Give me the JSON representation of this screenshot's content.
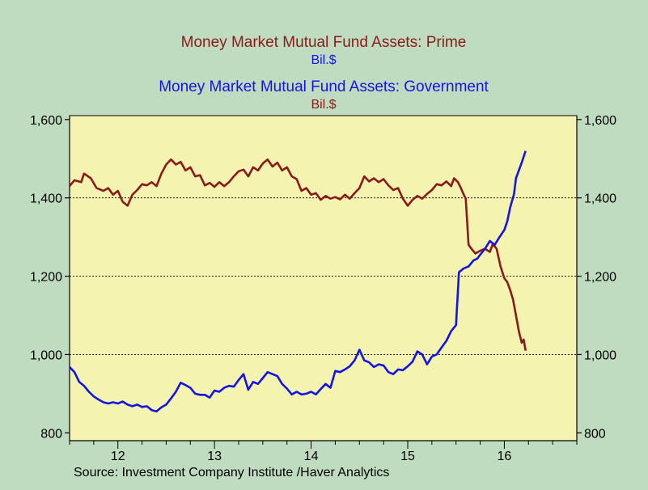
{
  "chart_data": {
    "type": "line",
    "titles": [
      {
        "text": "Money Market Mutual Fund Assets: Prime",
        "color": "#8b1a1a"
      },
      {
        "text": "Bil.$",
        "color": "#1414e6"
      },
      {
        "text": "Money Market Mutual Fund Assets: Government",
        "color": "#1414e6"
      },
      {
        "text": "Bil.$",
        "color": "#8b1a1a"
      }
    ],
    "source": "Source:  Investment Company Institute /Haver Analytics",
    "y_left": {
      "min": 780,
      "max": 1610,
      "ticks": [
        800,
        1000,
        1200,
        1400,
        1600
      ],
      "tick_labels": [
        "800",
        "1,000",
        "1,200",
        "1,400",
        "1,600"
      ]
    },
    "y_right": {
      "min": 780,
      "max": 1610,
      "ticks": [
        800,
        1000,
        1200,
        1400,
        1600
      ],
      "tick_labels": [
        "800",
        "1,000",
        "1,200",
        "1,400",
        "1,600"
      ]
    },
    "x_axis": {
      "min": 2011.5,
      "max": 2016.75,
      "year_ticks": [
        2012,
        2013,
        2014,
        2015,
        2016
      ],
      "year_labels": [
        "12",
        "13",
        "14",
        "15",
        "16"
      ]
    },
    "gridlines": [
      1000,
      1200,
      1400
    ],
    "plot_background": "#f5f3b0",
    "series": [
      {
        "name": "Money Market Mutual Fund Assets: Prime",
        "color": "#8b1a1a",
        "points": [
          [
            2011.5,
            1430
          ],
          [
            2011.55,
            1445
          ],
          [
            2011.62,
            1440
          ],
          [
            2011.65,
            1462
          ],
          [
            2011.72,
            1450
          ],
          [
            2011.78,
            1425
          ],
          [
            2011.85,
            1418
          ],
          [
            2011.9,
            1425
          ],
          [
            2011.95,
            1408
          ],
          [
            2012.0,
            1418
          ],
          [
            2012.05,
            1390
          ],
          [
            2012.1,
            1380
          ],
          [
            2012.15,
            1408
          ],
          [
            2012.2,
            1420
          ],
          [
            2012.25,
            1435
          ],
          [
            2012.3,
            1432
          ],
          [
            2012.35,
            1440
          ],
          [
            2012.4,
            1430
          ],
          [
            2012.45,
            1462
          ],
          [
            2012.5,
            1485
          ],
          [
            2012.55,
            1498
          ],
          [
            2012.6,
            1485
          ],
          [
            2012.65,
            1492
          ],
          [
            2012.7,
            1470
          ],
          [
            2012.75,
            1478
          ],
          [
            2012.8,
            1455
          ],
          [
            2012.85,
            1458
          ],
          [
            2012.9,
            1432
          ],
          [
            2012.95,
            1438
          ],
          [
            2013.0,
            1428
          ],
          [
            2013.05,
            1440
          ],
          [
            2013.1,
            1430
          ],
          [
            2013.15,
            1440
          ],
          [
            2013.2,
            1455
          ],
          [
            2013.25,
            1468
          ],
          [
            2013.3,
            1472
          ],
          [
            2013.35,
            1455
          ],
          [
            2013.4,
            1478
          ],
          [
            2013.45,
            1470
          ],
          [
            2013.5,
            1488
          ],
          [
            2013.55,
            1498
          ],
          [
            2013.6,
            1480
          ],
          [
            2013.65,
            1490
          ],
          [
            2013.7,
            1470
          ],
          [
            2013.75,
            1478
          ],
          [
            2013.8,
            1455
          ],
          [
            2013.85,
            1448
          ],
          [
            2013.9,
            1418
          ],
          [
            2013.95,
            1425
          ],
          [
            2014.0,
            1408
          ],
          [
            2014.05,
            1412
          ],
          [
            2014.1,
            1395
          ],
          [
            2014.15,
            1405
          ],
          [
            2014.2,
            1398
          ],
          [
            2014.25,
            1402
          ],
          [
            2014.3,
            1396
          ],
          [
            2014.35,
            1408
          ],
          [
            2014.4,
            1398
          ],
          [
            2014.45,
            1412
          ],
          [
            2014.5,
            1425
          ],
          [
            2014.55,
            1455
          ],
          [
            2014.6,
            1442
          ],
          [
            2014.65,
            1450
          ],
          [
            2014.7,
            1440
          ],
          [
            2014.75,
            1448
          ],
          [
            2014.8,
            1432
          ],
          [
            2014.85,
            1420
          ],
          [
            2014.9,
            1425
          ],
          [
            2014.95,
            1398
          ],
          [
            2015.0,
            1380
          ],
          [
            2015.05,
            1395
          ],
          [
            2015.1,
            1405
          ],
          [
            2015.15,
            1398
          ],
          [
            2015.2,
            1410
          ],
          [
            2015.25,
            1420
          ],
          [
            2015.3,
            1435
          ],
          [
            2015.35,
            1432
          ],
          [
            2015.4,
            1442
          ],
          [
            2015.45,
            1430
          ],
          [
            2015.48,
            1450
          ],
          [
            2015.52,
            1440
          ],
          [
            2015.55,
            1425
          ],
          [
            2015.58,
            1408
          ],
          [
            2015.6,
            1398
          ],
          [
            2015.63,
            1280
          ],
          [
            2015.66,
            1270
          ],
          [
            2015.7,
            1258
          ],
          [
            2015.75,
            1265
          ],
          [
            2015.8,
            1270
          ],
          [
            2015.85,
            1262
          ],
          [
            2015.88,
            1282
          ],
          [
            2015.92,
            1270
          ],
          [
            2015.96,
            1225
          ],
          [
            2016.0,
            1195
          ],
          [
            2016.03,
            1185
          ],
          [
            2016.06,
            1165
          ],
          [
            2016.09,
            1140
          ],
          [
            2016.12,
            1100
          ],
          [
            2016.15,
            1060
          ],
          [
            2016.18,
            1030
          ],
          [
            2016.2,
            1038
          ],
          [
            2016.22,
            1010
          ]
        ]
      },
      {
        "name": "Money Market Mutual Fund Assets: Government",
        "color": "#1414e6",
        "points": [
          [
            2011.5,
            968
          ],
          [
            2011.55,
            955
          ],
          [
            2011.6,
            930
          ],
          [
            2011.65,
            920
          ],
          [
            2011.7,
            905
          ],
          [
            2011.75,
            893
          ],
          [
            2011.8,
            885
          ],
          [
            2011.85,
            878
          ],
          [
            2011.9,
            875
          ],
          [
            2011.95,
            878
          ],
          [
            2012.0,
            875
          ],
          [
            2012.05,
            880
          ],
          [
            2012.1,
            872
          ],
          [
            2012.15,
            868
          ],
          [
            2012.2,
            872
          ],
          [
            2012.25,
            866
          ],
          [
            2012.3,
            868
          ],
          [
            2012.35,
            858
          ],
          [
            2012.4,
            855
          ],
          [
            2012.45,
            865
          ],
          [
            2012.5,
            872
          ],
          [
            2012.55,
            888
          ],
          [
            2012.6,
            905
          ],
          [
            2012.65,
            928
          ],
          [
            2012.7,
            922
          ],
          [
            2012.75,
            915
          ],
          [
            2012.8,
            900
          ],
          [
            2012.85,
            897
          ],
          [
            2012.9,
            897
          ],
          [
            2012.95,
            890
          ],
          [
            2013.0,
            908
          ],
          [
            2013.05,
            905
          ],
          [
            2013.1,
            915
          ],
          [
            2013.15,
            920
          ],
          [
            2013.2,
            918
          ],
          [
            2013.25,
            935
          ],
          [
            2013.3,
            950
          ],
          [
            2013.35,
            910
          ],
          [
            2013.4,
            930
          ],
          [
            2013.45,
            925
          ],
          [
            2013.5,
            940
          ],
          [
            2013.55,
            955
          ],
          [
            2013.6,
            950
          ],
          [
            2013.65,
            945
          ],
          [
            2013.7,
            925
          ],
          [
            2013.75,
            913
          ],
          [
            2013.8,
            898
          ],
          [
            2013.85,
            905
          ],
          [
            2013.9,
            898
          ],
          [
            2013.95,
            900
          ],
          [
            2014.0,
            905
          ],
          [
            2014.05,
            898
          ],
          [
            2014.1,
            912
          ],
          [
            2014.15,
            925
          ],
          [
            2014.2,
            915
          ],
          [
            2014.25,
            958
          ],
          [
            2014.3,
            955
          ],
          [
            2014.35,
            962
          ],
          [
            2014.4,
            970
          ],
          [
            2014.45,
            985
          ],
          [
            2014.5,
            1012
          ],
          [
            2014.55,
            985
          ],
          [
            2014.6,
            980
          ],
          [
            2014.65,
            968
          ],
          [
            2014.7,
            975
          ],
          [
            2014.75,
            972
          ],
          [
            2014.8,
            955
          ],
          [
            2014.85,
            950
          ],
          [
            2014.9,
            962
          ],
          [
            2014.95,
            960
          ],
          [
            2015.0,
            970
          ],
          [
            2015.05,
            982
          ],
          [
            2015.1,
            1008
          ],
          [
            2015.15,
            1000
          ],
          [
            2015.2,
            975
          ],
          [
            2015.25,
            995
          ],
          [
            2015.3,
            1000
          ],
          [
            2015.35,
            1018
          ],
          [
            2015.4,
            1035
          ],
          [
            2015.45,
            1060
          ],
          [
            2015.5,
            1075
          ],
          [
            2015.53,
            1210
          ],
          [
            2015.58,
            1220
          ],
          [
            2015.63,
            1225
          ],
          [
            2015.68,
            1240
          ],
          [
            2015.72,
            1245
          ],
          [
            2015.75,
            1255
          ],
          [
            2015.8,
            1270
          ],
          [
            2015.85,
            1290
          ],
          [
            2015.9,
            1280
          ],
          [
            2015.95,
            1300
          ],
          [
            2016.0,
            1318
          ],
          [
            2016.03,
            1340
          ],
          [
            2016.06,
            1375
          ],
          [
            2016.1,
            1410
          ],
          [
            2016.12,
            1450
          ],
          [
            2016.15,
            1470
          ],
          [
            2016.18,
            1490
          ],
          [
            2016.2,
            1505
          ],
          [
            2016.22,
            1520
          ]
        ]
      }
    ]
  }
}
